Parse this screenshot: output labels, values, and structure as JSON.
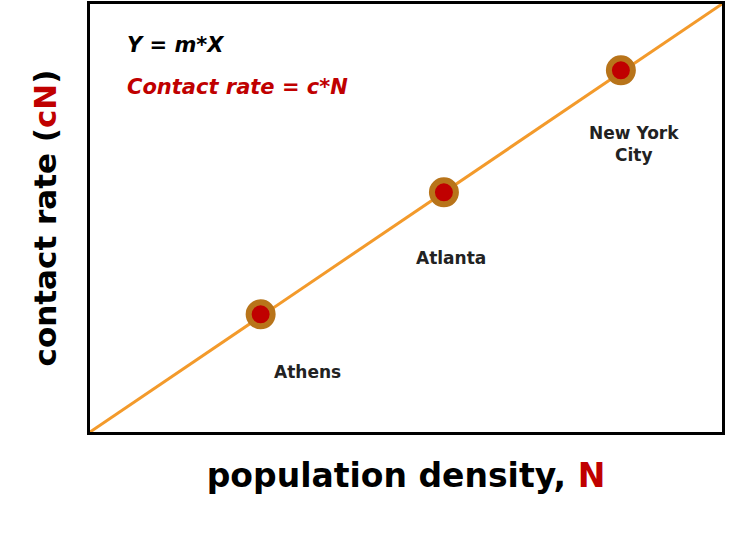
{
  "chart_data": {
    "type": "scatter",
    "x_label": [
      {
        "text": "population density, "
      },
      {
        "text": "N",
        "color": "#c00000"
      }
    ],
    "y_label": [
      {
        "text": "contact rate ("
      },
      {
        "text": "cN",
        "color": "#c00000"
      },
      {
        "text": ")"
      }
    ],
    "annotations": [
      {
        "text": "Y = m*X",
        "color": "#000000"
      },
      {
        "text": "Contact rate = c*N",
        "color": "#c00000"
      }
    ],
    "x": [
      2.7,
      5.6,
      8.4
    ],
    "values": [
      2.75,
      5.6,
      8.45
    ],
    "point_labels": [
      "Athens",
      "Atlanta",
      "New York\nCity"
    ],
    "color": "#c00000",
    "marker": "circle",
    "line": {
      "x": [
        0,
        10
      ],
      "values": [
        0,
        10
      ],
      "color": "#f39a2b",
      "line_style": "solid"
    },
    "xlim": [
      0,
      10
    ],
    "ylim": [
      0,
      10
    ],
    "xticks": [],
    "yticks": [],
    "tick_labels": false,
    "grid": false
  }
}
